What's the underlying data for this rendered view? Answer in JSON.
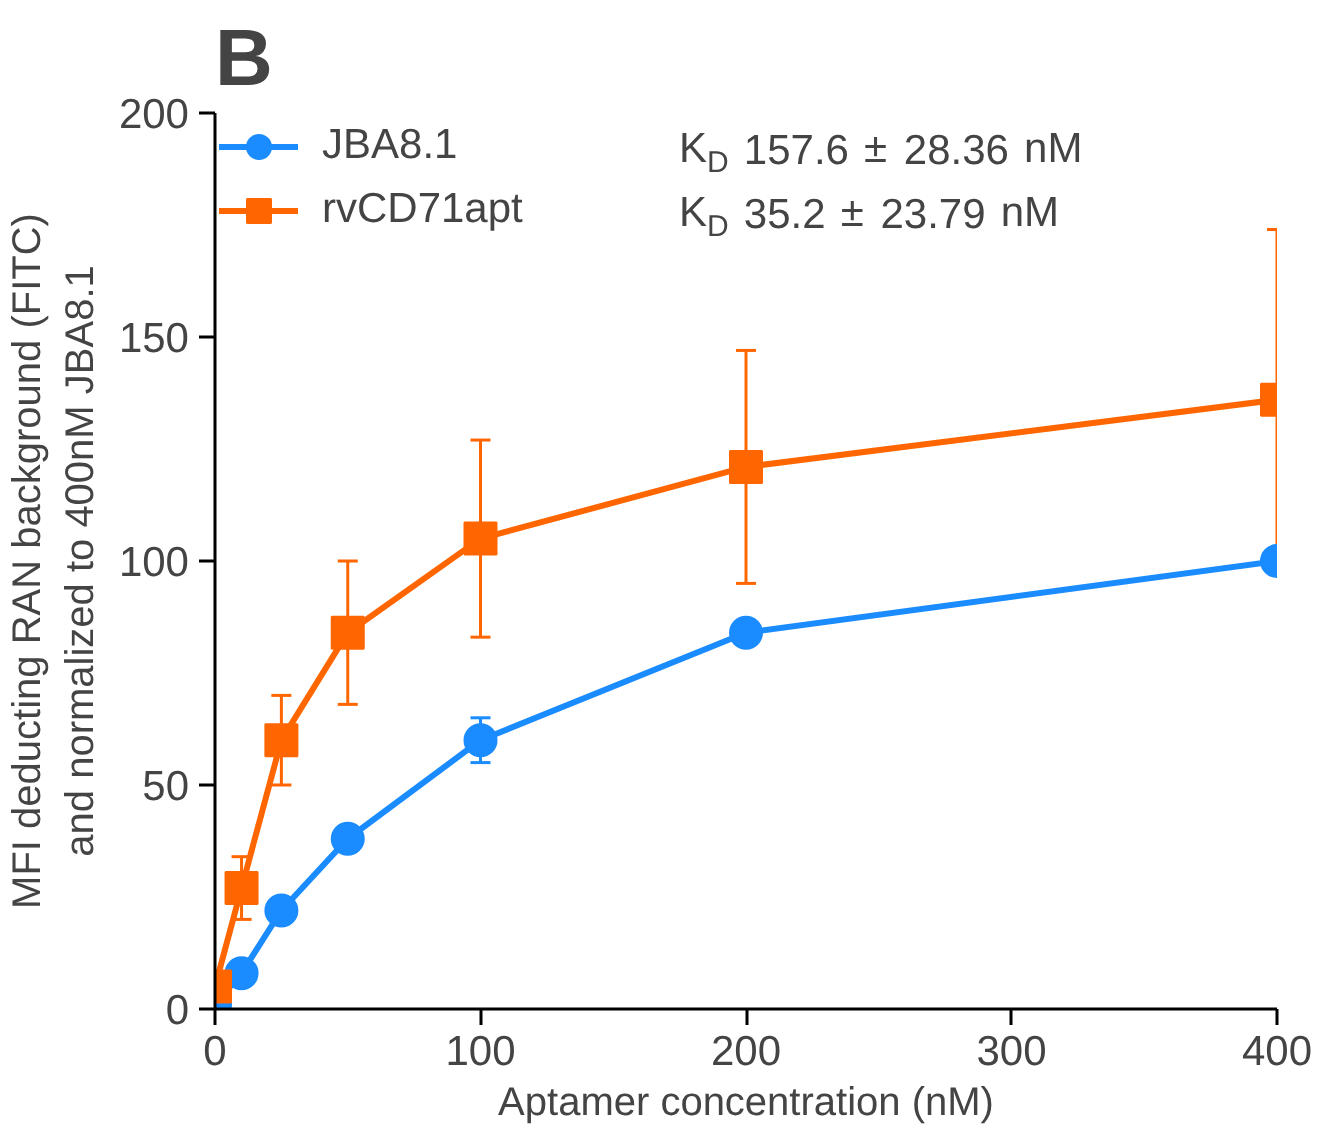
{
  "chart_data": {
    "type": "line",
    "title": "B",
    "xlabel": "Aptamer concentration (nM)",
    "ylabel": "MFI deducting RAN background (FITC)\nand normalized to 400nM JBA8.1",
    "x": [
      0,
      10,
      25,
      50,
      100,
      200,
      400
    ],
    "series": [
      {
        "name": "JBA8.1",
        "color": "#1a8cff",
        "marker": "circle",
        "values": [
          1,
          8,
          22,
          38,
          60,
          84,
          100
        ],
        "errors": [
          null,
          null,
          null,
          null,
          5,
          null,
          null
        ]
      },
      {
        "name": "rvCD71apt",
        "color": "#ff6600",
        "marker": "square",
        "values": [
          5,
          27,
          60,
          84,
          105,
          121,
          136
        ],
        "errors": [
          null,
          7,
          10,
          16,
          22,
          26,
          38
        ]
      }
    ],
    "annotations": [
      "K$_{D}$ 157.6 ± 28.36 nM",
      "K$_{D}$ 35.2 ± 23.79 nM"
    ],
    "xlim": [
      0,
      400
    ],
    "ylim": [
      0,
      200
    ],
    "xticks": [
      0,
      100,
      200,
      300,
      400
    ],
    "yticks": [
      0,
      50,
      100,
      150,
      200
    ],
    "grid": false,
    "legend": "top left",
    "line_style": "solid"
  }
}
